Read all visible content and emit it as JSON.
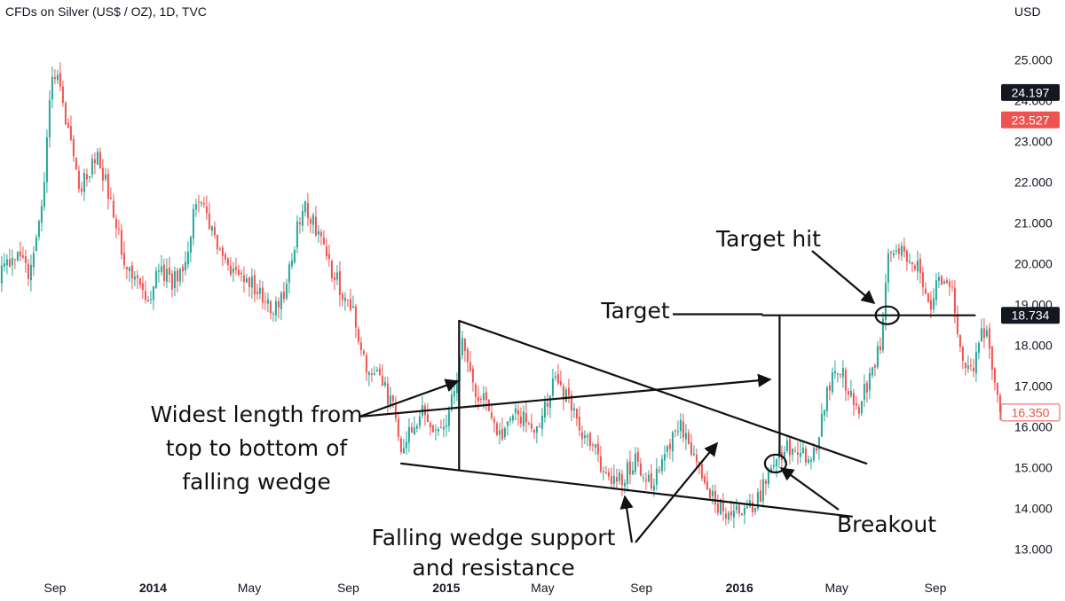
{
  "header": {
    "title": "CFDs on Silver (US$ / OZ), 1D, TVC",
    "currency": "USD"
  },
  "chart_data": {
    "type": "candlestick",
    "title": "CFDs on Silver (US$ / OZ), 1D, TVC",
    "ylabel": "USD",
    "ylim": [
      12.7,
      25.6
    ],
    "y_ticks": [
      "13.000",
      "14.000",
      "15.000",
      "16.000",
      "17.000",
      "18.000",
      "19.000",
      "20.000",
      "21.000",
      "22.000",
      "23.000",
      "24.000",
      "25.000"
    ],
    "x_ticks": [
      {
        "label": "Sep",
        "bold": false,
        "date": "2013-09"
      },
      {
        "label": "2014",
        "bold": true,
        "date": "2014-01"
      },
      {
        "label": "May",
        "bold": false,
        "date": "2014-05"
      },
      {
        "label": "Sep",
        "bold": false,
        "date": "2014-09"
      },
      {
        "label": "2015",
        "bold": true,
        "date": "2015-01"
      },
      {
        "label": "May",
        "bold": false,
        "date": "2015-05"
      },
      {
        "label": "Sep",
        "bold": false,
        "date": "2015-09"
      },
      {
        "label": "2016",
        "bold": true,
        "date": "2016-01"
      },
      {
        "label": "May",
        "bold": false,
        "date": "2016-05"
      },
      {
        "label": "Sep",
        "bold": false,
        "date": "2016-09"
      }
    ],
    "price_path": [
      [
        "2013-06-20",
        19.5
      ],
      [
        "2013-07-10",
        20.2
      ],
      [
        "2013-08-01",
        19.8
      ],
      [
        "2013-08-15",
        21.2
      ],
      [
        "2013-08-28",
        24.7
      ],
      [
        "2013-09-05",
        24.4
      ],
      [
        "2013-09-18",
        23.2
      ],
      [
        "2013-10-01",
        21.9
      ],
      [
        "2013-10-15",
        22.3
      ],
      [
        "2013-10-25",
        22.6
      ],
      [
        "2013-11-10",
        21.5
      ],
      [
        "2013-11-25",
        20.2
      ],
      [
        "2013-12-10",
        19.6
      ],
      [
        "2013-12-28",
        19.2
      ],
      [
        "2014-01-10",
        19.9
      ],
      [
        "2014-01-25",
        19.5
      ],
      [
        "2014-02-10",
        20.0
      ],
      [
        "2014-02-24",
        21.6
      ],
      [
        "2014-03-05",
        21.3
      ],
      [
        "2014-03-20",
        20.5
      ],
      [
        "2014-04-10",
        19.8
      ],
      [
        "2014-04-28",
        19.6
      ],
      [
        "2014-05-15",
        19.3
      ],
      [
        "2014-06-01",
        18.9
      ],
      [
        "2014-06-15",
        19.4
      ],
      [
        "2014-06-30",
        20.9
      ],
      [
        "2014-07-10",
        21.4
      ],
      [
        "2014-07-25",
        20.8
      ],
      [
        "2014-08-10",
        19.9
      ],
      [
        "2014-08-25",
        19.3
      ],
      [
        "2014-09-08",
        18.7
      ],
      [
        "2014-09-25",
        17.3
      ],
      [
        "2014-10-10",
        17.2
      ],
      [
        "2014-10-28",
        16.4
      ],
      [
        "2014-11-06",
        15.5
      ],
      [
        "2014-11-20",
        15.9
      ],
      [
        "2014-12-05",
        16.5
      ],
      [
        "2014-12-20",
        15.9
      ],
      [
        "2015-01-05",
        16.3
      ],
      [
        "2015-01-15",
        17.4
      ],
      [
        "2015-01-22",
        18.2
      ],
      [
        "2015-02-05",
        16.9
      ],
      [
        "2015-02-20",
        16.6
      ],
      [
        "2015-03-10",
        15.7
      ],
      [
        "2015-03-25",
        16.4
      ],
      [
        "2015-04-10",
        16.2
      ],
      [
        "2015-04-25",
        15.8
      ],
      [
        "2015-05-15",
        17.3
      ],
      [
        "2015-05-28",
        16.8
      ],
      [
        "2015-06-15",
        16.0
      ],
      [
        "2015-07-01",
        15.6
      ],
      [
        "2015-07-24",
        14.6
      ],
      [
        "2015-08-10",
        14.8
      ],
      [
        "2015-08-25",
        15.2
      ],
      [
        "2015-09-10",
        14.6
      ],
      [
        "2015-09-25",
        14.9
      ],
      [
        "2015-10-10",
        15.7
      ],
      [
        "2015-10-20",
        16.1
      ],
      [
        "2015-11-05",
        15.3
      ],
      [
        "2015-11-20",
        14.4
      ],
      [
        "2015-12-05",
        14.1
      ],
      [
        "2015-12-20",
        13.9
      ],
      [
        "2016-01-05",
        14.0
      ],
      [
        "2016-01-20",
        14.1
      ],
      [
        "2016-02-05",
        14.7
      ],
      [
        "2016-02-20",
        15.3
      ],
      [
        "2016-03-10",
        15.6
      ],
      [
        "2016-03-25",
        15.2
      ],
      [
        "2016-04-05",
        15.3
      ],
      [
        "2016-04-15",
        16.4
      ],
      [
        "2016-04-28",
        17.6
      ],
      [
        "2016-05-10",
        17.2
      ],
      [
        "2016-05-25",
        16.3
      ],
      [
        "2016-06-10",
        17.1
      ],
      [
        "2016-06-25",
        18.0
      ],
      [
        "2016-07-04",
        20.1
      ],
      [
        "2016-07-15",
        20.4
      ],
      [
        "2016-07-28",
        20.2
      ],
      [
        "2016-08-10",
        19.9
      ],
      [
        "2016-08-25",
        19.0
      ],
      [
        "2016-09-08",
        19.7
      ],
      [
        "2016-09-22",
        19.2
      ],
      [
        "2016-10-05",
        17.4
      ],
      [
        "2016-10-20",
        17.6
      ],
      [
        "2016-10-28",
        18.4
      ],
      [
        "2016-11-05",
        18.3
      ],
      [
        "2016-11-15",
        16.8
      ],
      [
        "2016-11-25",
        16.3
      ]
    ],
    "colors": {
      "up": "#26a69a",
      "down": "#ef5350",
      "axis_text": "#131722",
      "annotation": "#111111"
    },
    "price_badges": [
      {
        "value": "24.197",
        "bg": "#131722",
        "fg": "#ffffff",
        "style": "filled"
      },
      {
        "value": "23.527",
        "bg": "#ef5350",
        "fg": "#ffffff",
        "style": "filled"
      },
      {
        "value": "18.734",
        "bg": "#131722",
        "fg": "#ffffff",
        "style": "filled"
      },
      {
        "value": "16.350",
        "bg": "#ffffff",
        "fg": "#ef5350",
        "style": "outline"
      }
    ],
    "annotations": {
      "widest_lines": [
        "Widest length from",
        "top to bottom of",
        "falling wedge"
      ],
      "support_lines": [
        "Falling wedge support",
        "and resistance"
      ],
      "target": "Target",
      "target_hit": "Target hit",
      "breakout": "Breakout"
    },
    "drawings": {
      "resistance_line": [
        [
          "2015-01-17",
          18.6
        ],
        [
          "2016-06-07",
          15.1
        ]
      ],
      "support_line": [
        [
          "2014-11-06",
          15.1
        ],
        [
          "2016-05-20",
          13.8
        ]
      ],
      "target_line": [
        [
          "2016-01-30",
          18.734
        ],
        [
          "2016-10-20",
          18.734
        ]
      ]
    }
  }
}
